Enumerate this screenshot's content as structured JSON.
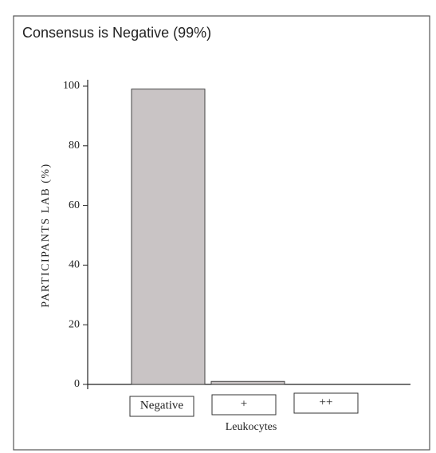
{
  "chart_data": {
    "type": "bar",
    "title": "Consensus is Negative (99%)",
    "y_label": "PARTICIPANTS LAB (%)",
    "x_label": "Leukocytes",
    "categories": [
      "Negative",
      "+",
      "++"
    ],
    "values": [
      99,
      1,
      0
    ],
    "color": "#c9c4c5",
    "ylim": [
      0,
      100
    ],
    "yticks": [
      0,
      20,
      40,
      60,
      80,
      100
    ],
    "grid": false
  }
}
